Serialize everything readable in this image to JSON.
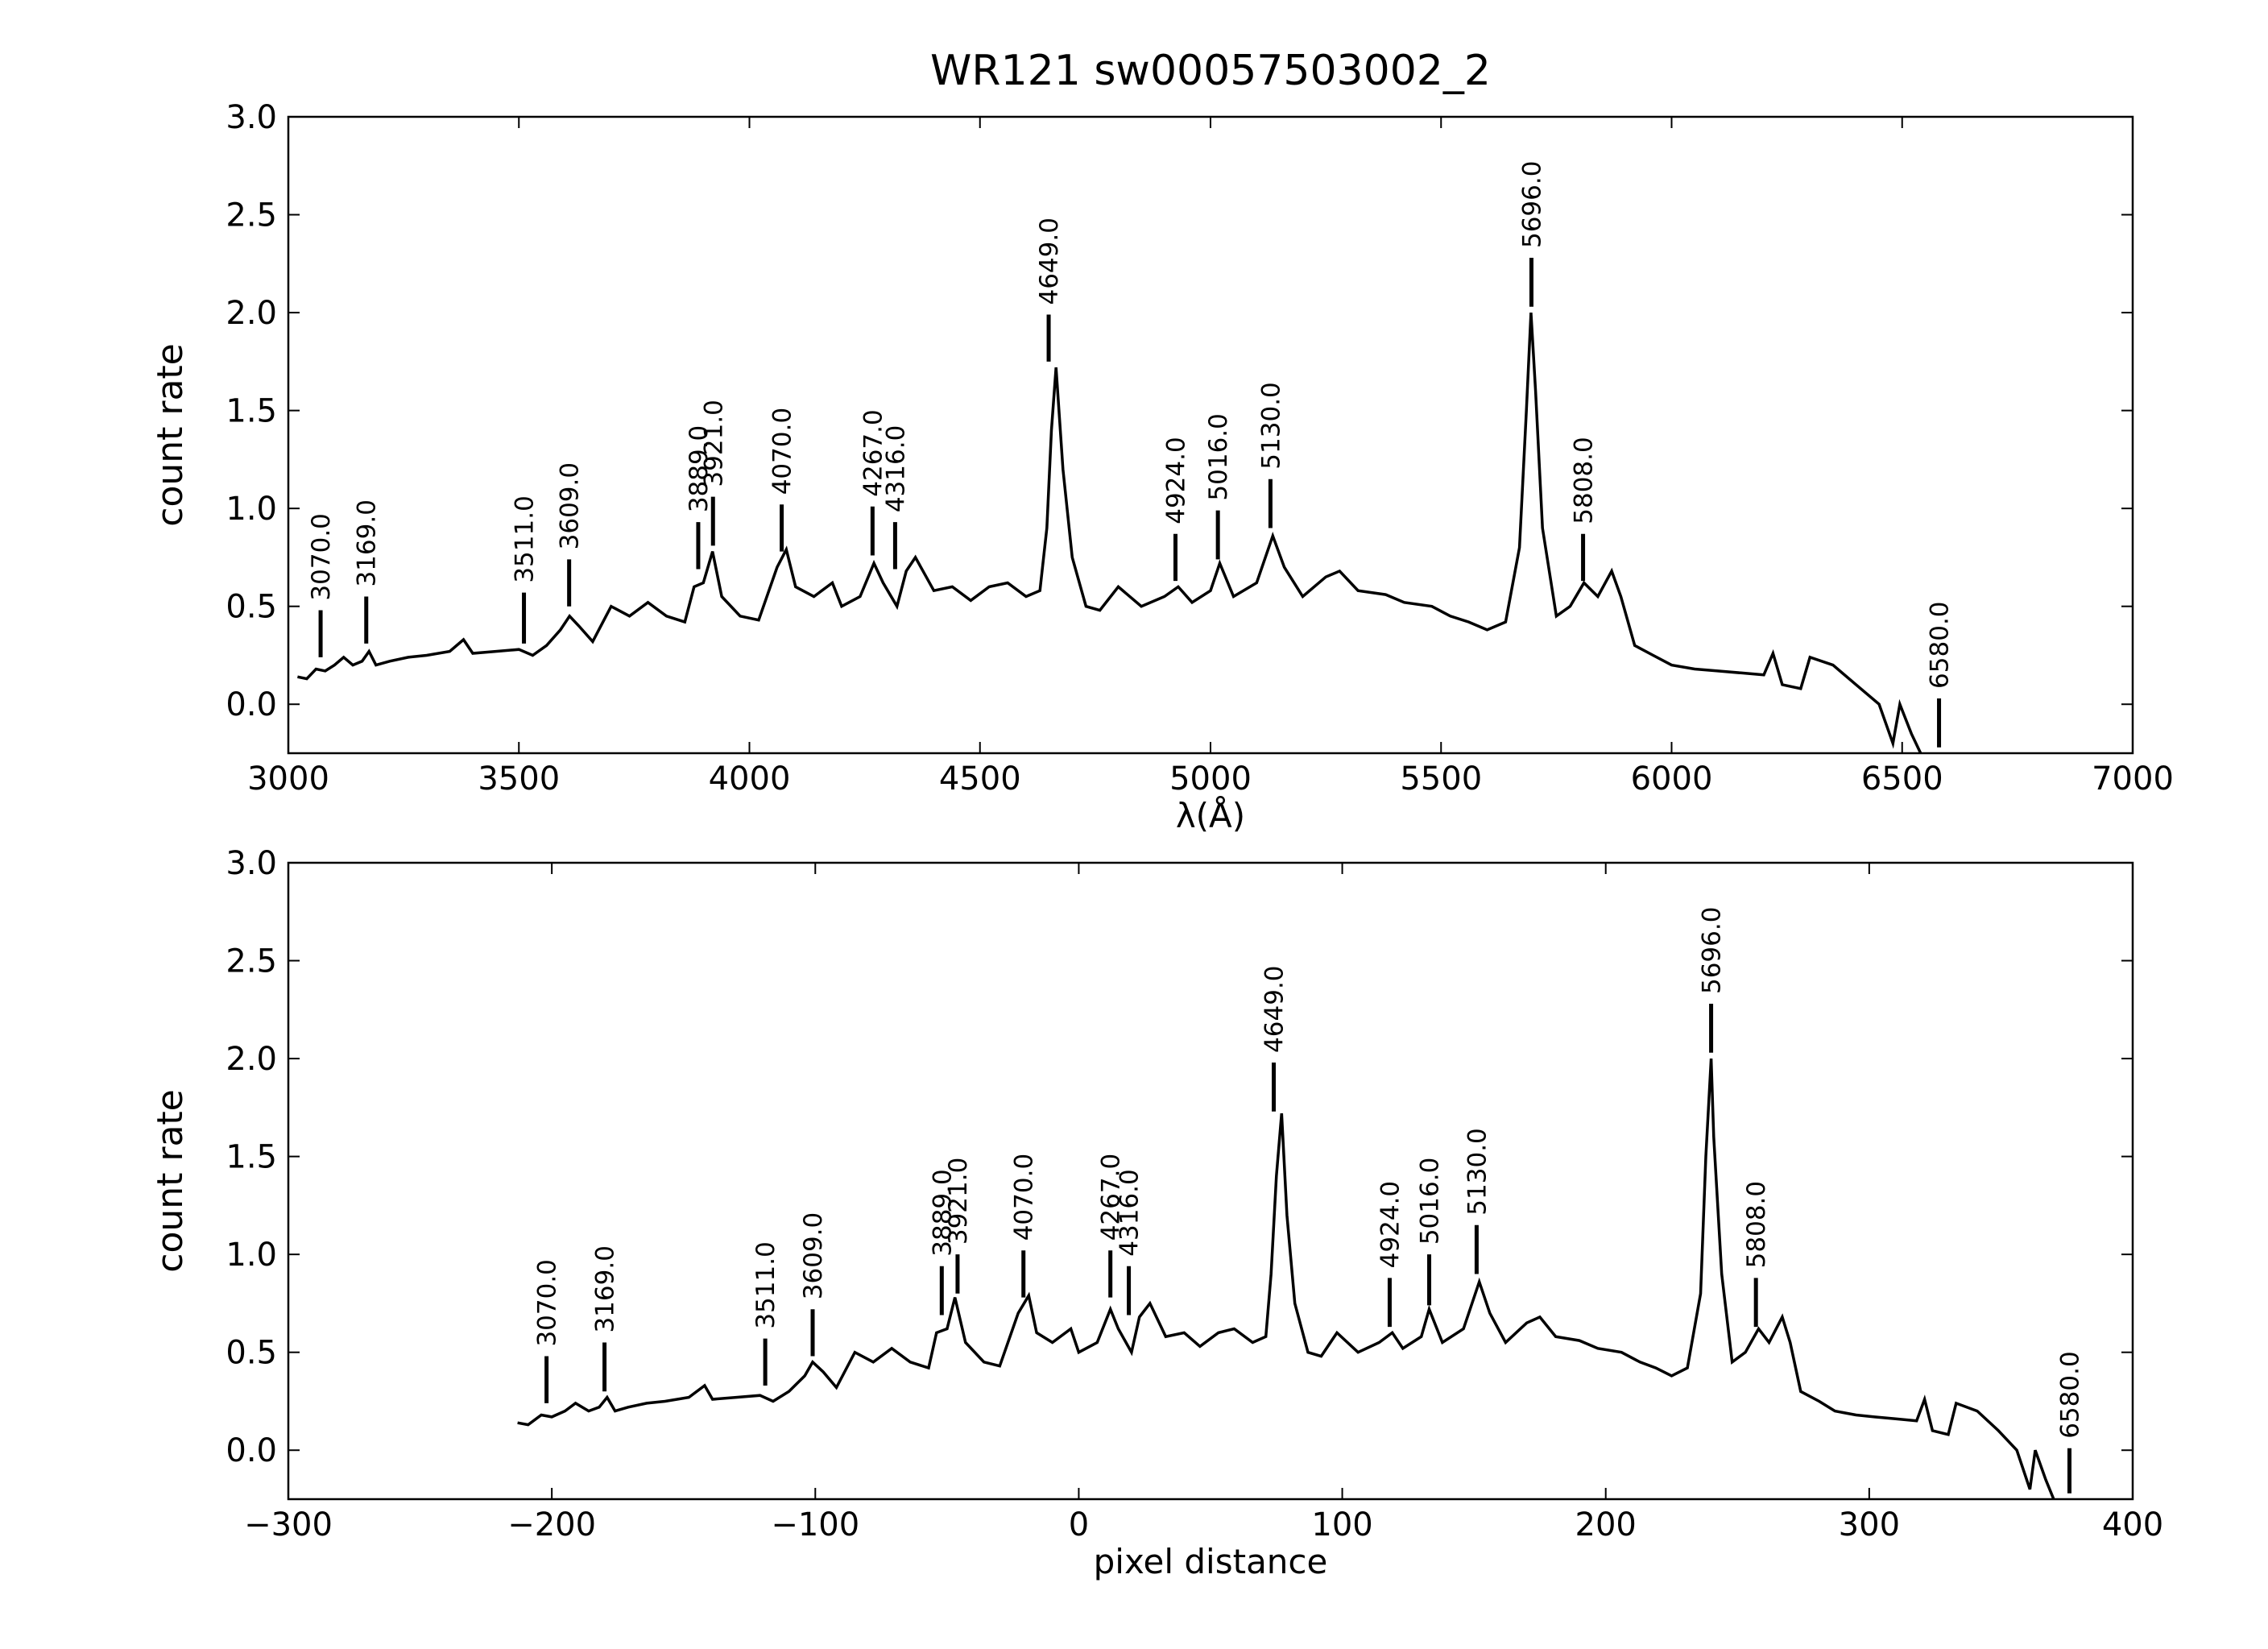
{
  "chart_data": [
    {
      "type": "line",
      "title": "WR121  sw00057503002_2",
      "xlabel": "λ(Å)",
      "ylabel": "count rate",
      "x": [
        3020,
        3040,
        3060,
        3080,
        3100,
        3120,
        3140,
        3160,
        3175,
        3190,
        3220,
        3260,
        3300,
        3350,
        3380,
        3400,
        3450,
        3500,
        3530,
        3560,
        3590,
        3610,
        3630,
        3660,
        3700,
        3740,
        3780,
        3820,
        3860,
        3880,
        3900,
        3920,
        3940,
        3980,
        4020,
        4060,
        4080,
        4100,
        4140,
        4180,
        4200,
        4240,
        4270,
        4290,
        4320,
        4340,
        4360,
        4400,
        4440,
        4480,
        4520,
        4560,
        4600,
        4630,
        4645,
        4655,
        4665,
        4680,
        4700,
        4730,
        4760,
        4800,
        4850,
        4900,
        4930,
        4960,
        5000,
        5020,
        5050,
        5100,
        5135,
        5160,
        5200,
        5250,
        5280,
        5320,
        5380,
        5420,
        5480,
        5520,
        5560,
        5600,
        5640,
        5670,
        5685,
        5695,
        5705,
        5720,
        5750,
        5780,
        5810,
        5840,
        5870,
        5890,
        5920,
        5960,
        6000,
        6050,
        6100,
        6150,
        6200,
        6220,
        6240,
        6280,
        6300,
        6350,
        6400,
        6450,
        6480,
        6495,
        6520,
        6540
      ],
      "series": [
        {
          "color": "#000000",
          "values": [
            0.14,
            0.13,
            0.18,
            0.17,
            0.2,
            0.24,
            0.2,
            0.22,
            0.27,
            0.2,
            0.22,
            0.24,
            0.25,
            0.27,
            0.33,
            0.26,
            0.27,
            0.28,
            0.25,
            0.3,
            0.38,
            0.45,
            0.4,
            0.32,
            0.5,
            0.45,
            0.52,
            0.45,
            0.42,
            0.6,
            0.62,
            0.78,
            0.55,
            0.45,
            0.43,
            0.7,
            0.79,
            0.6,
            0.55,
            0.62,
            0.5,
            0.55,
            0.72,
            0.62,
            0.5,
            0.68,
            0.75,
            0.58,
            0.6,
            0.53,
            0.6,
            0.62,
            0.55,
            0.58,
            0.9,
            1.4,
            1.72,
            1.2,
            0.75,
            0.5,
            0.48,
            0.6,
            0.5,
            0.55,
            0.6,
            0.52,
            0.58,
            0.72,
            0.55,
            0.62,
            0.86,
            0.7,
            0.55,
            0.65,
            0.68,
            0.58,
            0.56,
            0.52,
            0.5,
            0.45,
            0.42,
            0.38,
            0.42,
            0.8,
            1.5,
            2.0,
            1.6,
            0.9,
            0.45,
            0.5,
            0.62,
            0.55,
            0.68,
            0.55,
            0.3,
            0.25,
            0.2,
            0.18,
            0.17,
            0.16,
            0.15,
            0.26,
            0.1,
            0.08,
            0.24,
            0.2,
            0.1,
            0.0,
            -0.2,
            0.0,
            -0.15,
            -0.25
          ]
        }
      ],
      "xlim": [
        3000,
        7000
      ],
      "ylim": [
        -0.25,
        3.0
      ],
      "xticks": [
        3000,
        3500,
        4000,
        4500,
        5000,
        5500,
        6000,
        6500,
        7000
      ],
      "yticks": [
        {
          "value": 0,
          "label": "0.0"
        },
        {
          "value": 0.5,
          "label": "0.5"
        },
        {
          "value": 1,
          "label": "1.0"
        },
        {
          "value": 1.5,
          "label": "1.5"
        },
        {
          "value": 2,
          "label": "2.0"
        },
        {
          "value": 2.5,
          "label": "2.5"
        },
        {
          "value": 3,
          "label": "3.0"
        }
      ],
      "markers": {
        "labels": [
          "3070.0",
          "3169.0",
          "3511.0",
          "3609.0",
          "3889.0",
          "3921.0",
          "4070.0",
          "4267.0",
          "4316.0",
          "4649.0",
          "4924.0",
          "5016.0",
          "5130.0",
          "5696.0",
          "5808.0",
          "6580.0"
        ],
        "x": [
          3070,
          3169,
          3511,
          3609,
          3889,
          3921,
          4070,
          4267,
          4316,
          4649,
          4924,
          5016,
          5130,
          5696,
          5808,
          6580
        ],
        "ymin": [
          0.24,
          0.31,
          0.31,
          0.5,
          0.69,
          0.81,
          0.78,
          0.76,
          0.69,
          1.75,
          0.63,
          0.74,
          0.9,
          2.03,
          0.63,
          -0.22
        ],
        "ymax": [
          0.48,
          0.55,
          0.57,
          0.74,
          0.93,
          1.06,
          1.02,
          1.01,
          0.93,
          1.99,
          0.87,
          0.99,
          1.15,
          2.28,
          0.87,
          0.03
        ]
      }
    },
    {
      "type": "line",
      "xlabel": "pixel distance",
      "ylabel": "count rate",
      "x": [
        -213,
        -209,
        -204,
        -200,
        -195,
        -191,
        -186,
        -182,
        -179,
        -176,
        -171,
        -164,
        -157,
        -148,
        -142,
        -139,
        -130,
        -121,
        -116,
        -110,
        -104,
        -101,
        -97,
        -92,
        -85,
        -78,
        -71,
        -64,
        -57,
        -54,
        -50,
        -47,
        -43,
        -36,
        -30,
        -23,
        -19,
        -16,
        -10,
        -3,
        0,
        7,
        12,
        15,
        20,
        23,
        27,
        33,
        40,
        46,
        53,
        59,
        66,
        71,
        73,
        75,
        77,
        79,
        82,
        87,
        92,
        98,
        106,
        114,
        119,
        123,
        130,
        133,
        138,
        146,
        152,
        156,
        162,
        170,
        175,
        181,
        190,
        197,
        206,
        213,
        219,
        225,
        231,
        236,
        238,
        240,
        241,
        244,
        248,
        253,
        258,
        262,
        267,
        270,
        274,
        281,
        287,
        295,
        302,
        310,
        318,
        321,
        324,
        330,
        333,
        341,
        349,
        356,
        361,
        363,
        367,
        370
      ],
      "series": [
        {
          "color": "#000000",
          "values": [
            0.14,
            0.13,
            0.18,
            0.17,
            0.2,
            0.24,
            0.2,
            0.22,
            0.27,
            0.2,
            0.22,
            0.24,
            0.25,
            0.27,
            0.33,
            0.26,
            0.27,
            0.28,
            0.25,
            0.3,
            0.38,
            0.45,
            0.4,
            0.32,
            0.5,
            0.45,
            0.52,
            0.45,
            0.42,
            0.6,
            0.62,
            0.78,
            0.55,
            0.45,
            0.43,
            0.7,
            0.79,
            0.6,
            0.55,
            0.62,
            0.5,
            0.55,
            0.72,
            0.62,
            0.5,
            0.68,
            0.75,
            0.58,
            0.6,
            0.53,
            0.6,
            0.62,
            0.55,
            0.58,
            0.9,
            1.4,
            1.72,
            1.2,
            0.75,
            0.5,
            0.48,
            0.6,
            0.5,
            0.55,
            0.6,
            0.52,
            0.58,
            0.72,
            0.55,
            0.62,
            0.86,
            0.7,
            0.55,
            0.65,
            0.68,
            0.58,
            0.56,
            0.52,
            0.5,
            0.45,
            0.42,
            0.38,
            0.42,
            0.8,
            1.5,
            2.0,
            1.6,
            0.9,
            0.45,
            0.5,
            0.62,
            0.55,
            0.68,
            0.55,
            0.3,
            0.25,
            0.2,
            0.18,
            0.17,
            0.16,
            0.15,
            0.26,
            0.1,
            0.08,
            0.24,
            0.2,
            0.1,
            0.0,
            -0.2,
            0.0,
            -0.15,
            -0.25
          ]
        }
      ],
      "xlim": [
        -300,
        400
      ],
      "ylim": [
        -0.25,
        3.0
      ],
      "xticks": [
        {
          "value": -300,
          "label": "−300"
        },
        {
          "value": -200,
          "label": "−200"
        },
        {
          "value": -100,
          "label": "−100"
        },
        0,
        100,
        200,
        300,
        400
      ],
      "yticks": [
        {
          "value": 0,
          "label": "0.0"
        },
        {
          "value": 0.5,
          "label": "0.5"
        },
        {
          "value": 1,
          "label": "1.0"
        },
        {
          "value": 1.5,
          "label": "1.5"
        },
        {
          "value": 2,
          "label": "2.0"
        },
        {
          "value": 2.5,
          "label": "2.5"
        },
        {
          "value": 3,
          "label": "3.0"
        }
      ],
      "markers": {
        "labels": [
          "3070.0",
          "3169.0",
          "3511.0",
          "3609.0",
          "3889.0",
          "3921.0",
          "4070.0",
          "4267.0",
          "4316.0",
          "4649.0",
          "4924.0",
          "5016.0",
          "5130.0",
          "5696.0",
          "5808.0",
          "6580.0"
        ],
        "x": [
          -202,
          -180,
          -119,
          -101,
          -52,
          -46,
          -21,
          12,
          19,
          74,
          118,
          133,
          151,
          240,
          257,
          376
        ],
        "ymin": [
          0.24,
          0.3,
          0.33,
          0.48,
          0.69,
          0.8,
          0.78,
          0.78,
          0.69,
          1.73,
          0.63,
          0.74,
          0.9,
          2.03,
          0.63,
          -0.22
        ],
        "ymax": [
          0.48,
          0.55,
          0.57,
          0.72,
          0.94,
          1.0,
          1.02,
          1.02,
          0.94,
          1.98,
          0.88,
          1.0,
          1.15,
          2.28,
          0.88,
          0.01
        ]
      }
    }
  ]
}
